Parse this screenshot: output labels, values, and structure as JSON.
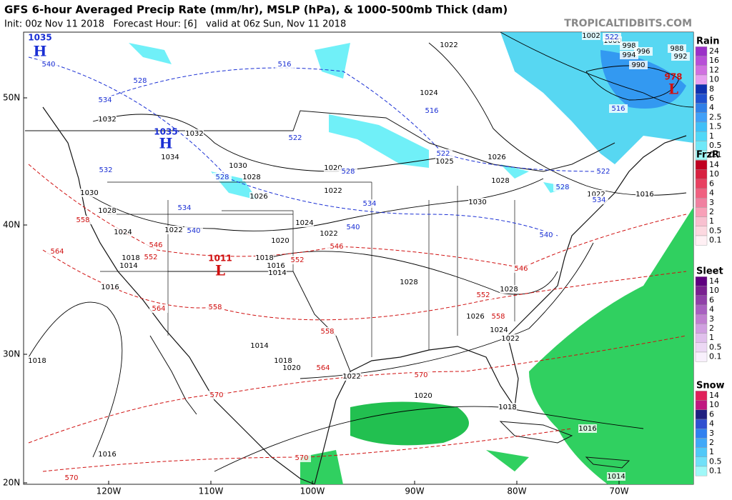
{
  "header": {
    "title": "GFS 6-hour Averaged Precip Rate (mm/hr), MSLP (hPa), & 1000-500mb Thick (dam)",
    "subtitle": "Init: 00z Nov 11 2018   Forecast Hour: [6]   valid at 06z Sun, Nov 11 2018",
    "site": "TROPICALTIDBITS.COM"
  },
  "axes": {
    "latitude": [
      "50N",
      "40N",
      "30N",
      "20N"
    ],
    "longitude": [
      "120W",
      "110W",
      "100W",
      "90W",
      "80W",
      "70W"
    ]
  },
  "legend": [
    {
      "title": "Rain",
      "labels": [
        "24",
        "16",
        "12",
        "10",
        "8",
        "6",
        "4",
        "2.5",
        "1.5",
        "1",
        "0.5",
        "0.1"
      ]
    },
    {
      "title": "FrzR",
      "labels": [
        "14",
        "10",
        "6",
        "4",
        "3",
        "2",
        "1",
        "0.5",
        "0.1"
      ]
    },
    {
      "title": "Sleet",
      "labels": [
        "14",
        "10",
        "6",
        "4",
        "3",
        "2",
        "1",
        "0.5",
        "0.1"
      ]
    },
    {
      "title": "Snow",
      "labels": [
        "14",
        "10",
        "6",
        "4",
        "3",
        "2",
        "1",
        "0.5",
        "0.1"
      ]
    }
  ],
  "pressure_centers": [
    {
      "label": "H",
      "value": "1035"
    },
    {
      "label": "H",
      "value": "1035"
    },
    {
      "label": "L",
      "value": "1011"
    },
    {
      "label": "L",
      "value": "978"
    }
  ],
  "contour_labels": {
    "isobars": [
      "1022",
      "1024",
      "1032",
      "1032",
      "1034",
      "1030",
      "1028",
      "1026",
      "1020",
      "1022",
      "1030",
      "1028",
      "1024",
      "1022",
      "1024",
      "1022",
      "1020",
      "1018",
      "1016",
      "1014",
      "1018",
      "1014",
      "1016",
      "1028",
      "1028",
      "1026",
      "1024",
      "1022",
      "1030",
      "1028",
      "1026",
      "1025",
      "1022",
      "1016",
      "1014",
      "1018",
      "1020",
      "1022",
      "1020",
      "1018",
      "1016",
      "1016",
      "1014",
      "1018",
      "1002",
      "1000",
      "998",
      "996",
      "994",
      "992",
      "990",
      "988"
    ],
    "thickness_low": [
      "540",
      "534",
      "528",
      "516",
      "522",
      "528",
      "534",
      "540",
      "540",
      "534",
      "528",
      "532",
      "516",
      "522",
      "522",
      "534",
      "528",
      "540",
      "522",
      "516"
    ],
    "thickness_high": [
      "558",
      "564",
      "546",
      "552",
      "546",
      "552",
      "558",
      "564",
      "558",
      "564",
      "552",
      "558",
      "546",
      "570",
      "570",
      "570",
      "570"
    ]
  }
}
